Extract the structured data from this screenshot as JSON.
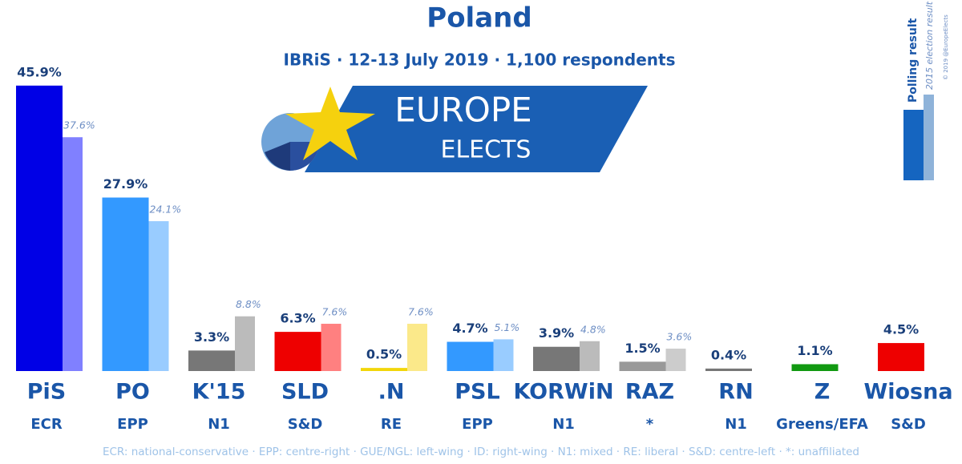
{
  "chart_data": {
    "type": "bar",
    "title": "Poland",
    "subtitle": "IBRiS · 12-13 July 2019 · 1,100 respondents",
    "logo": {
      "line1": "EUROPE",
      "line2": "ELECTS"
    },
    "credit": "© 2019 @EuropeElects",
    "categories": [
      "PiS",
      "PO",
      "K'15",
      "SLD",
      ".N",
      "PSL",
      "KORWiN",
      "RAZ",
      "RN",
      "Z",
      "Wiosna"
    ],
    "groups": [
      "ECR",
      "EPP",
      "N1",
      "S&D",
      "RE",
      "EPP",
      "N1",
      "*",
      "N1",
      "Greens/EFA",
      "S&D"
    ],
    "series": [
      {
        "name": "Polling result",
        "legend_color": "#1565c0",
        "values": [
          45.9,
          27.9,
          3.3,
          6.3,
          0.5,
          4.7,
          3.9,
          1.5,
          0.4,
          1.1,
          4.5
        ],
        "value_labels": [
          "45.9%",
          "27.9%",
          "3.3%",
          "6.3%",
          "0.5%",
          "4.7%",
          "3.9%",
          "1.5%",
          "0.4%",
          "1.1%",
          "4.5%"
        ],
        "colors": [
          "#0000e6",
          "#3399ff",
          "#777777",
          "#ee0000",
          "#f2d60a",
          "#3399ff",
          "#777777",
          "#999999",
          "#777777",
          "#119911",
          "#ee0000"
        ]
      },
      {
        "name": "2015 election result",
        "legend_color": "#8fb3d9",
        "values": [
          37.6,
          24.1,
          8.8,
          7.6,
          7.6,
          5.1,
          4.8,
          3.6,
          null,
          null,
          null
        ],
        "value_labels": [
          "37.6%",
          "24.1%",
          "8.8%",
          "7.6%",
          "7.6%",
          "5.1%",
          "4.8%",
          "3.6%",
          null,
          null,
          null
        ],
        "colors": [
          "#8080ff",
          "#99ccff",
          "#bbbbbb",
          "#ff8080",
          "#fbe98a",
          "#99ccff",
          "#bbbbbb",
          "#cccccc",
          null,
          null,
          null
        ]
      }
    ],
    "footnote": "ECR: national-conservative · EPP: centre-right · GUE/NGL: left-wing · ID: right-wing · N1: mixed · RE: liberal · S&D: centre-left · *: unaffiliated"
  }
}
